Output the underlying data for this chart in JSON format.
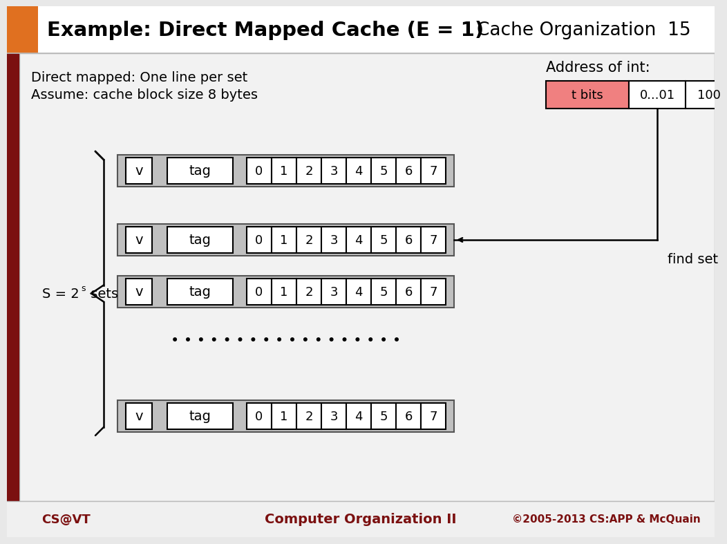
{
  "title": "Example: Direct Mapped Cache (E = 1)",
  "subtitle_right": "Cache Organization  15",
  "desc_line1": "Direct mapped: One line per set",
  "desc_line2": "Assume: cache block size 8 bytes",
  "s_label_base": "S = 2",
  "s_label_super": "s",
  "s_label_end": " sets",
  "address_label": "Address of int:",
  "addr_cells": [
    "t bits",
    "0...01",
    "100"
  ],
  "addr_cell_colors": [
    "#f08080",
    "#ffffff",
    "#ffffff"
  ],
  "find_set_label": "find set",
  "byte_labels": [
    "0",
    "1",
    "2",
    "3",
    "4",
    "5",
    "6",
    "7"
  ],
  "footer_left": "CS@VT",
  "footer_center": "Computer Organization II",
  "footer_right": "©2005-2013 CS:APP & McQuain",
  "bg_color": "#e8e8e8",
  "content_bg": "#efefef",
  "dark_red": "#7B1010",
  "orange": "#E07020",
  "row_bg": "#c0c0c0",
  "cell_bg": "#ffffff"
}
